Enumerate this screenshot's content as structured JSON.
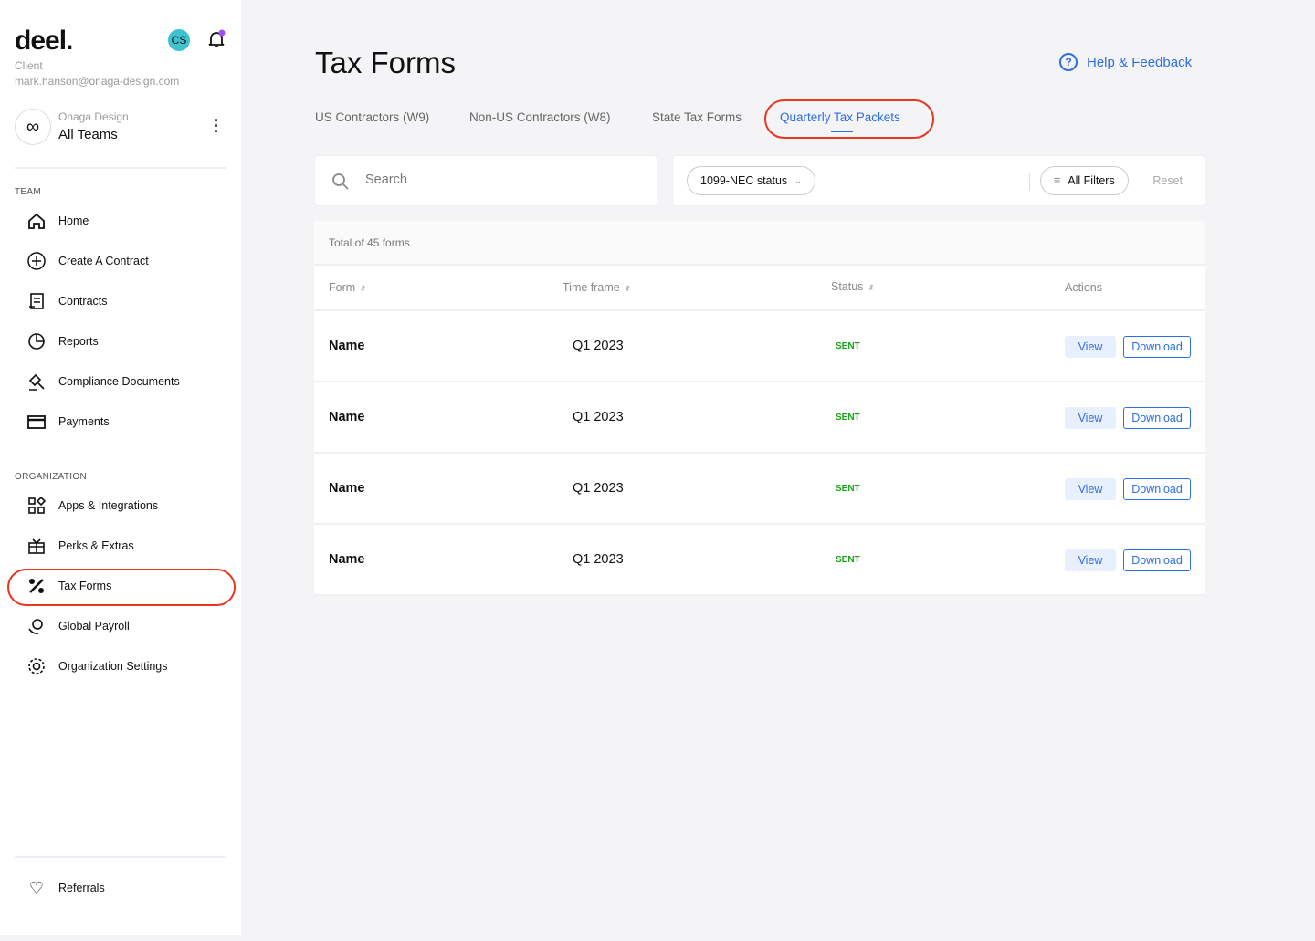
{
  "sidebar": {
    "logo": "deel.",
    "avatar_initials": "CS",
    "role": "Client",
    "email": "mark.hanson@onaga-design.com",
    "org_name": "Onaga Design",
    "org_team": "All Teams",
    "team_label": "TEAM",
    "org_label": "ORGANIZATION",
    "team_items": [
      {
        "label": "Home",
        "icon": "home-icon"
      },
      {
        "label": "Create A Contract",
        "icon": "plus-circle-icon"
      },
      {
        "label": "Contracts",
        "icon": "contract-icon"
      },
      {
        "label": "Reports",
        "icon": "pie-chart-icon"
      },
      {
        "label": "Compliance Documents",
        "icon": "gavel-icon"
      },
      {
        "label": "Payments",
        "icon": "credit-card-icon"
      }
    ],
    "org_items": [
      {
        "label": "Apps & Integrations",
        "icon": "apps-icon"
      },
      {
        "label": "Perks & Extras",
        "icon": "gift-icon"
      },
      {
        "label": "Tax Forms",
        "icon": "percent-icon"
      },
      {
        "label": "Global Payroll",
        "icon": "payroll-icon"
      },
      {
        "label": "Organization Settings",
        "icon": "gear-icon"
      }
    ],
    "referrals": "Referrals"
  },
  "header": {
    "title": "Tax Forms",
    "help": "Help & Feedback"
  },
  "tabs": [
    "US Contractors (W9)",
    "Non-US Contractors (W8)",
    "State Tax Forms",
    "Quarterly Tax Packets"
  ],
  "active_tab": "Quarterly Tax Packets",
  "filters": {
    "search_placeholder": "Search",
    "status_filter": "1099-NEC status",
    "all_filters": "All Filters",
    "reset": "Reset"
  },
  "table": {
    "total": "Total of 45 forms",
    "columns": [
      "Form",
      "Time frame",
      "Status",
      "Actions"
    ],
    "rows": [
      {
        "name": "Name",
        "timeframe": "Q1 2023",
        "status": "SENT"
      },
      {
        "name": "Name",
        "timeframe": "Q1 2023",
        "status": "SENT"
      },
      {
        "name": "Name",
        "timeframe": "Q1 2023",
        "status": "SENT"
      },
      {
        "name": "Name",
        "timeframe": "Q1 2023",
        "status": "SENT"
      }
    ],
    "view_label": "View",
    "download_label": "Download"
  },
  "colors": {
    "accent": "#2d6ee6",
    "status_sent": "#1aa11a",
    "highlight": "#e8371e"
  }
}
